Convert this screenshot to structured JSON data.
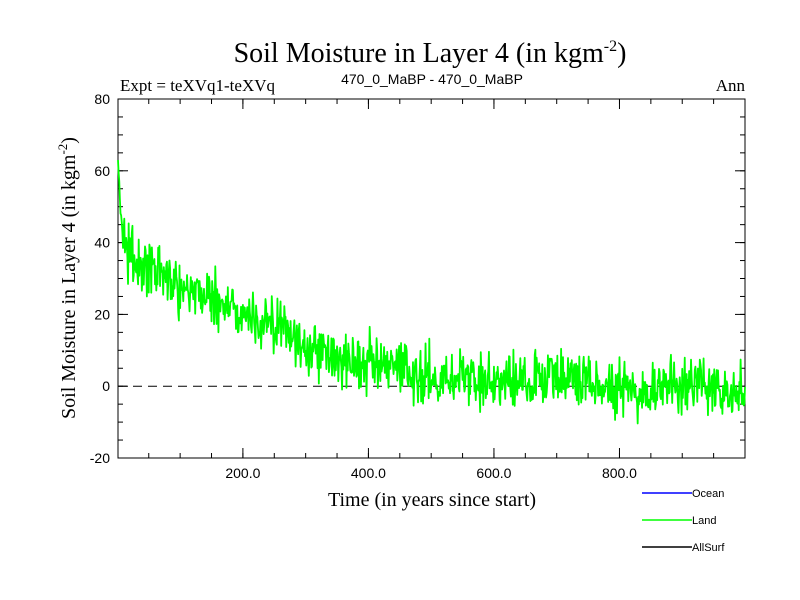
{
  "chart_data": {
    "type": "line",
    "title": "Soil Moisture in Layer 4 (in kgm",
    "title_superscript": "-2",
    "title_close": ")",
    "subtitle_left": "Expt = teXVq1-teXVq",
    "subtitle_center": "470_0_MaBP - 470_0_MaBP",
    "subtitle_right": "Ann",
    "xlabel": "Time (in years since start)",
    "ylabel": "Soil Moisture in Layer 4 (in kgm",
    "ylabel_superscript": "-2",
    "ylabel_close": ")",
    "xlim": [
      1,
      1000
    ],
    "ylim": [
      -20,
      80
    ],
    "x_ticks": [
      200,
      400,
      600,
      800
    ],
    "x_tick_labels": [
      "200.0",
      "400.0",
      "600.0",
      "800.0"
    ],
    "y_ticks": [
      -20,
      0,
      20,
      40,
      60,
      80
    ],
    "y_tick_labels": [
      "-20",
      "0",
      "20",
      "40",
      "60",
      "80"
    ],
    "zero_line": 0,
    "series": [
      {
        "name": "Land",
        "color": "#00ff00",
        "noise_amplitude": 5,
        "anchors": [
          [
            1,
            63
          ],
          [
            5,
            48
          ],
          [
            15,
            38
          ],
          [
            30,
            34
          ],
          [
            50,
            33
          ],
          [
            80,
            30
          ],
          [
            120,
            27
          ],
          [
            160,
            24
          ],
          [
            200,
            20
          ],
          [
            250,
            17
          ],
          [
            300,
            11
          ],
          [
            350,
            8
          ],
          [
            400,
            6
          ],
          [
            450,
            4
          ],
          [
            500,
            3
          ],
          [
            550,
            2
          ],
          [
            600,
            1
          ],
          [
            650,
            2
          ],
          [
            700,
            3
          ],
          [
            750,
            1
          ],
          [
            800,
            0
          ],
          [
            850,
            -1
          ],
          [
            900,
            0
          ],
          [
            950,
            1
          ],
          [
            1000,
            -2
          ]
        ]
      }
    ],
    "legend": [
      {
        "label": "Ocean",
        "color": "#0000ff"
      },
      {
        "label": "Land",
        "color": "#00ff00"
      },
      {
        "label": "AllSurf",
        "color": "#000000"
      }
    ],
    "legend_position": "bottom-right"
  }
}
